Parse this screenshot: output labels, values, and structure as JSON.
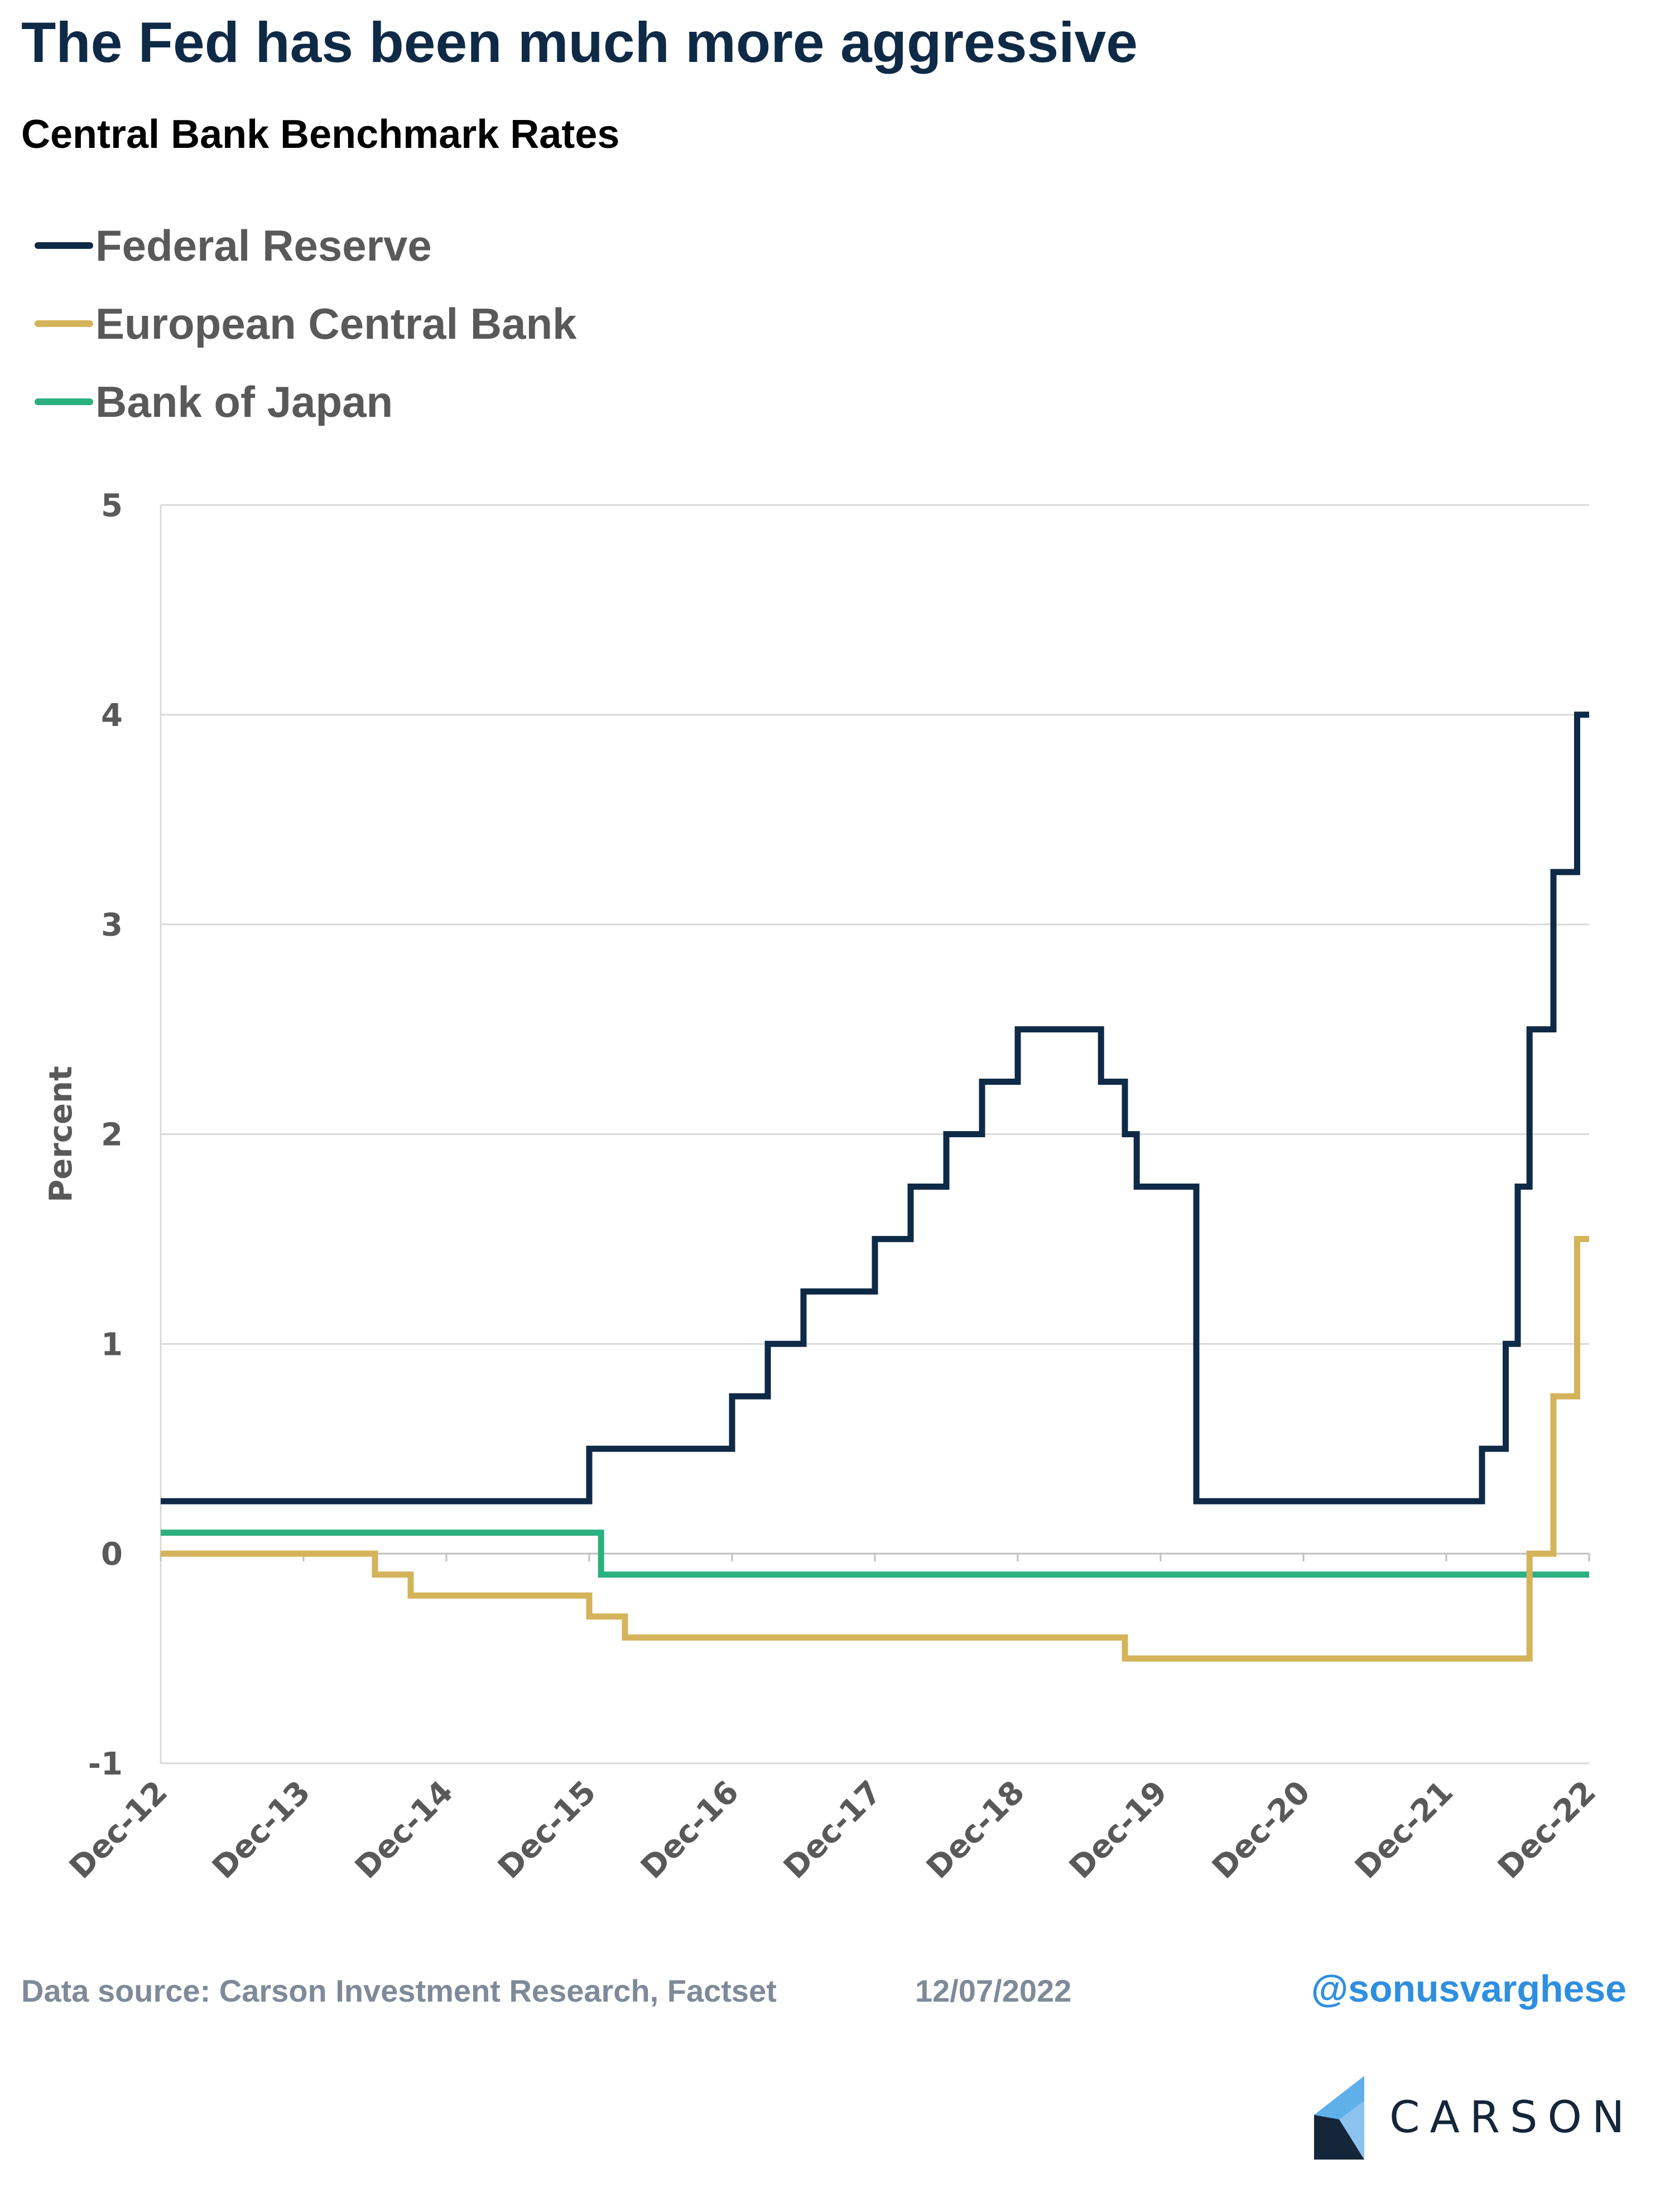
{
  "header": {
    "title": "The Fed has been much more aggressive",
    "subtitle": "Central Bank Benchmark Rates"
  },
  "legend": [
    {
      "label": "Federal Reserve",
      "color": "#0e2a47"
    },
    {
      "label": "European Central Bank",
      "color": "#d4b35a"
    },
    {
      "label": "Bank of Japan",
      "color": "#2bb07f"
    }
  ],
  "footer": {
    "source": "Data source: Carson Investment Research, Factset",
    "date": "12/07/2022",
    "handle": "@sonusvarghese",
    "logo_text": "CARSON"
  },
  "chart_data": {
    "type": "line",
    "title": "Central Bank Benchmark Rates",
    "ylabel": "Percent",
    "xlabel": "",
    "ylim": [
      -1,
      5
    ],
    "yticks": [
      5,
      4,
      3,
      2,
      1,
      0,
      -1
    ],
    "xlim": [
      2012.917,
      2022.917
    ],
    "xticks": [
      {
        "label": "Dec-12",
        "x": 2012.917
      },
      {
        "label": "Dec-13",
        "x": 2013.917
      },
      {
        "label": "Dec-14",
        "x": 2014.917
      },
      {
        "label": "Dec-15",
        "x": 2015.917
      },
      {
        "label": "Dec-16",
        "x": 2016.917
      },
      {
        "label": "Dec-17",
        "x": 2017.917
      },
      {
        "label": "Dec-18",
        "x": 2018.917
      },
      {
        "label": "Dec-19",
        "x": 2019.917
      },
      {
        "label": "Dec-20",
        "x": 2020.917
      },
      {
        "label": "Dec-21",
        "x": 2021.917
      },
      {
        "label": "Dec-22",
        "x": 2022.917
      }
    ],
    "grid": true,
    "step": true,
    "series": [
      {
        "name": "Federal Reserve",
        "color": "#0e2a47",
        "points": [
          [
            2012.917,
            0.25
          ],
          [
            2015.917,
            0.5
          ],
          [
            2016.917,
            0.75
          ],
          [
            2017.167,
            1.0
          ],
          [
            2017.417,
            1.25
          ],
          [
            2017.917,
            1.5
          ],
          [
            2018.167,
            1.75
          ],
          [
            2018.417,
            2.0
          ],
          [
            2018.667,
            2.25
          ],
          [
            2018.917,
            2.5
          ],
          [
            2019.5,
            2.25
          ],
          [
            2019.667,
            2.0
          ],
          [
            2019.75,
            1.75
          ],
          [
            2020.167,
            0.25
          ],
          [
            2022.167,
            0.5
          ],
          [
            2022.333,
            1.0
          ],
          [
            2022.417,
            1.75
          ],
          [
            2022.5,
            2.5
          ],
          [
            2022.667,
            3.25
          ],
          [
            2022.833,
            4.0
          ],
          [
            2022.917,
            4.0
          ]
        ]
      },
      {
        "name": "European Central Bank",
        "color": "#d4b35a",
        "points": [
          [
            2012.917,
            0.0
          ],
          [
            2014.417,
            -0.1
          ],
          [
            2014.667,
            -0.2
          ],
          [
            2015.917,
            -0.3
          ],
          [
            2016.167,
            -0.4
          ],
          [
            2019.667,
            -0.5
          ],
          [
            2022.5,
            0.0
          ],
          [
            2022.667,
            0.75
          ],
          [
            2022.833,
            1.5
          ],
          [
            2022.917,
            1.5
          ]
        ]
      },
      {
        "name": "Bank of Japan",
        "color": "#2bb07f",
        "points": [
          [
            2012.917,
            0.1
          ],
          [
            2016.0,
            -0.1
          ],
          [
            2022.917,
            -0.1
          ]
        ]
      }
    ]
  }
}
